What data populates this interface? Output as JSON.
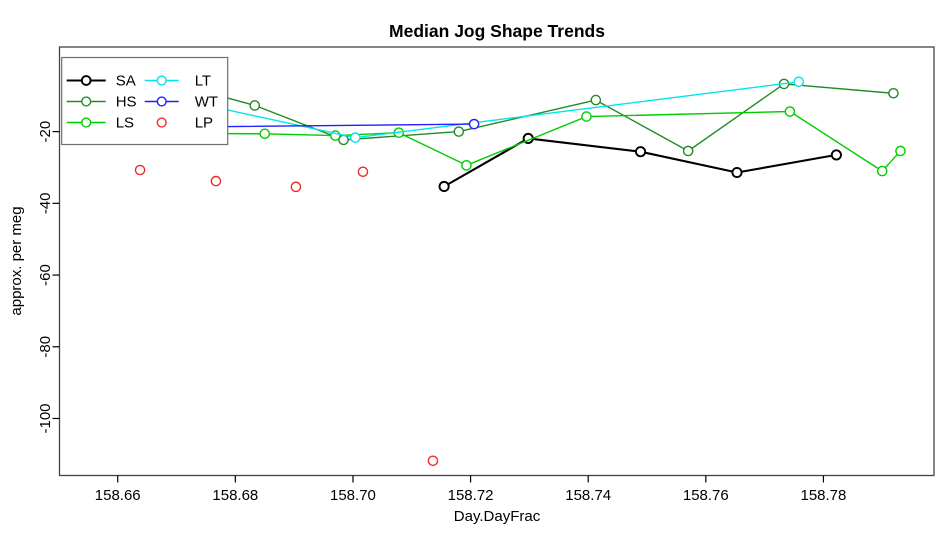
{
  "chart_data": {
    "type": "line",
    "title": "Median Jog Shape Trends",
    "xlabel": "Day.DayFrac",
    "ylabel": "approx. per meg",
    "xlim": [
      158.6501,
      158.7988
    ],
    "ylim": [
      -115.9,
      3.6
    ],
    "x_ticks": [
      158.66,
      158.68,
      158.7,
      158.72,
      158.74,
      158.76,
      158.78
    ],
    "x_tick_labels": [
      "158.66",
      "158.68",
      "158.70",
      "158.72",
      "158.74",
      "158.76",
      "158.78"
    ],
    "y_ticks": [
      -20,
      -40,
      -60,
      -80,
      -100
    ],
    "y_tick_labels": [
      "-20",
      "-40",
      "-60",
      "-80",
      "-100"
    ],
    "grid": false,
    "legend": {
      "position": "top-left",
      "columns": [
        [
          "SA",
          "HS",
          "LS"
        ],
        [
          "LT",
          "WT",
          "LP"
        ]
      ]
    },
    "series": [
      {
        "name": "SA",
        "color": "#000000",
        "line": true,
        "line_width": 2.1,
        "marker": "open-circle",
        "points": [
          [
            158.7155,
            -35.3
          ],
          [
            158.7298,
            -21.9
          ],
          [
            158.7489,
            -25.6
          ],
          [
            158.7653,
            -31.4
          ],
          [
            158.7822,
            -26.5
          ]
        ]
      },
      {
        "name": "HS",
        "color": "#228B22",
        "line": true,
        "line_width": 1.4,
        "marker": "open-circle",
        "points": [
          [
            158.664,
            -4.0
          ],
          [
            158.6833,
            -12.7
          ],
          [
            158.6984,
            -22.3
          ],
          [
            158.718,
            -20.0
          ],
          [
            158.7413,
            -11.2
          ],
          [
            158.757,
            -25.4
          ],
          [
            158.7733,
            -6.7
          ],
          [
            158.7919,
            -9.3
          ]
        ]
      },
      {
        "name": "LS",
        "color": "#00CD00",
        "line": true,
        "line_width": 1.4,
        "marker": "open-circle",
        "points": [
          [
            158.66,
            -20.4
          ],
          [
            158.685,
            -20.6
          ],
          [
            158.697,
            -21.1
          ],
          [
            158.7078,
            -20.3
          ],
          [
            158.7193,
            -29.4
          ],
          [
            158.7397,
            -15.8
          ],
          [
            158.7743,
            -14.4
          ],
          [
            158.79,
            -31.0
          ],
          [
            158.7931,
            -25.4
          ]
        ]
      },
      {
        "name": "LT",
        "color": "#00E5EE",
        "line": true,
        "line_width": 1.4,
        "marker": "open-circle",
        "points": [
          [
            158.66,
            -7.3
          ],
          [
            158.7004,
            -21.7
          ],
          [
            158.7758,
            -6.1
          ]
        ]
      },
      {
        "name": "WT",
        "color": "#1F1FFF",
        "line": true,
        "line_width": 1.4,
        "marker": "open-circle",
        "points": [
          [
            158.66,
            -18.9
          ],
          [
            158.7206,
            -17.9
          ]
        ]
      },
      {
        "name": "LP",
        "color": "#EE2C2C",
        "line": false,
        "line_width": 1.6,
        "marker": "open-circle",
        "points": [
          [
            158.6638,
            -30.7
          ],
          [
            158.6767,
            -33.8
          ],
          [
            158.6903,
            -35.4
          ],
          [
            158.7017,
            -31.2
          ],
          [
            158.7136,
            -111.8
          ]
        ]
      }
    ]
  }
}
